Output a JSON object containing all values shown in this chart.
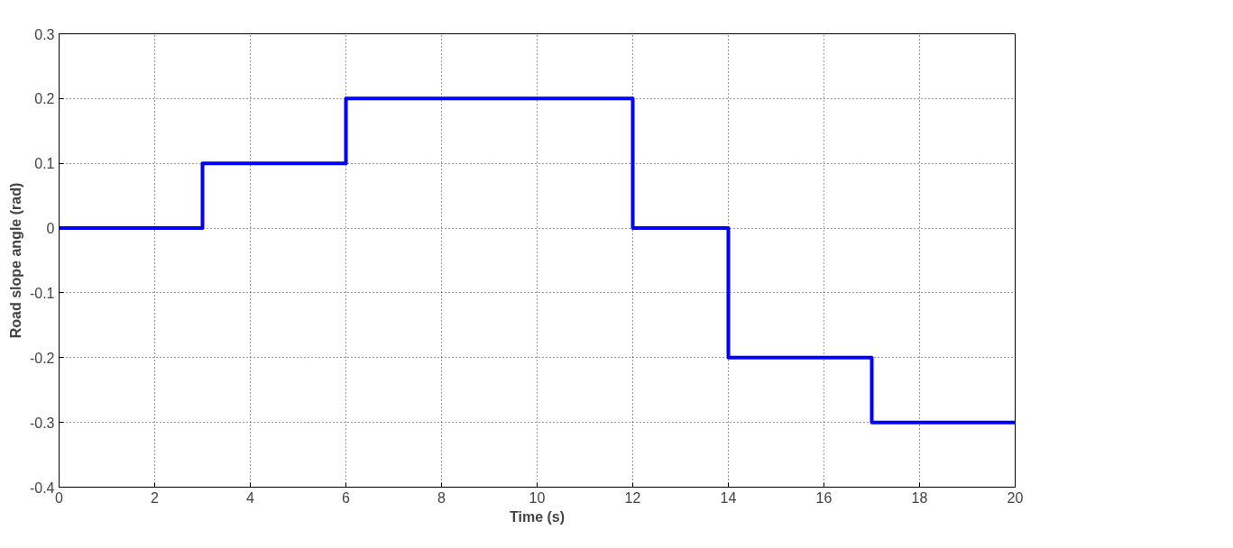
{
  "chart_data": {
    "type": "step",
    "xlabel": "Time (s)",
    "ylabel": "Road slope angle (rad)",
    "x": [
      0,
      3,
      6,
      12,
      14,
      17,
      20
    ],
    "series": [
      {
        "color": "#0000ff",
        "values": [
          0,
          0.1,
          0.2,
          0,
          -0.2,
          -0.3,
          -0.3
        ]
      }
    ],
    "xlim": [
      0,
      20
    ],
    "xticks": [
      0,
      2,
      4,
      6,
      8,
      10,
      12,
      14,
      16,
      18,
      20
    ],
    "ylim": [
      -0.4,
      0.3
    ],
    "yticks": [
      -0.4,
      -0.3,
      -0.2,
      -0.1,
      0,
      0.1,
      0.2,
      0.3
    ],
    "grid": true,
    "line_style": "solid",
    "marker": "none"
  }
}
